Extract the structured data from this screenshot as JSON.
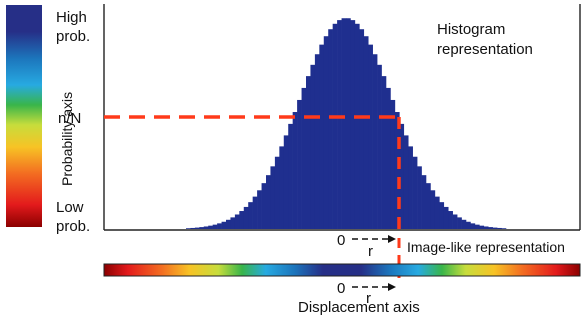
{
  "labels": {
    "high_line1": "High",
    "high_line2": "prob.",
    "low_line1": "Low",
    "low_line2": "prob.",
    "y_axis": "Probability axis",
    "threshold": "n/N",
    "title_line1": "Histogram",
    "title_line2": "representation",
    "zero_top": "0",
    "r_top": "r",
    "image_like": "Image-like representation",
    "zero_bottom": "0",
    "r_bottom": "r",
    "x_axis": "Displacement axis"
  },
  "colors": {
    "histogram_bar": "#1f2f8f",
    "dashed_guide": "#ff3a1a",
    "colorbar_stops": [
      "#8b0000",
      "#d7191c",
      "#f36c21",
      "#f7c325",
      "#c7dd3c",
      "#39b54a",
      "#27aae1",
      "#1c75bc",
      "#262f87",
      "#262f87"
    ]
  },
  "chart_data": {
    "type": "bar",
    "description_free": true,
    "distribution": "gaussian",
    "mean": 0,
    "std": 1,
    "x_range": [
      -3.4,
      3.4
    ],
    "bins": 72,
    "threshold_fraction": 0.52,
    "r_position": 0.85
  }
}
